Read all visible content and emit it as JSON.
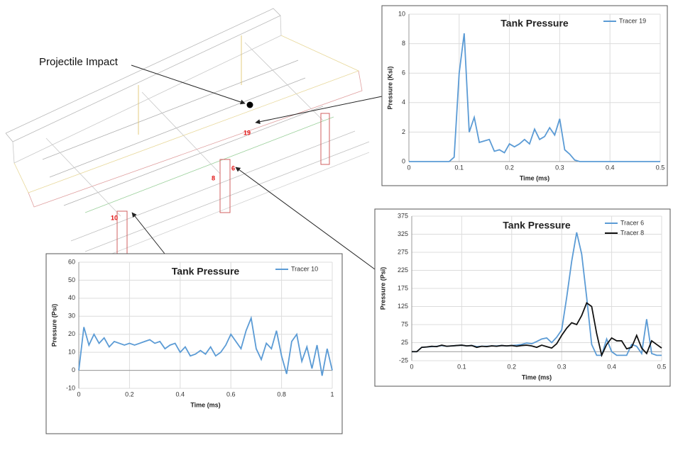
{
  "diagram": {
    "annotation": "Projectile Impact",
    "tracer_labels": [
      "19",
      "10",
      "8",
      "6"
    ]
  },
  "chart_data": [
    {
      "type": "line",
      "title": "Tank Pressure",
      "x_label": "Time (ms)",
      "y_label": "Pressure (Ksi)",
      "x": [
        0,
        0.08,
        0.09,
        0.1,
        0.11,
        0.12,
        0.13,
        0.14,
        0.15,
        0.16,
        0.17,
        0.18,
        0.19,
        0.2,
        0.21,
        0.22,
        0.23,
        0.24,
        0.25,
        0.26,
        0.27,
        0.28,
        0.29,
        0.3,
        0.31,
        0.32,
        0.33,
        0.34,
        0.5
      ],
      "series": [
        {
          "name": "Tracer 19",
          "color": "#5b9bd5",
          "values": [
            0,
            0,
            0.3,
            6,
            8.7,
            2.0,
            3.0,
            1.3,
            1.4,
            1.5,
            0.7,
            0.8,
            0.6,
            1.2,
            1.0,
            1.2,
            1.5,
            1.2,
            2.2,
            1.5,
            1.7,
            2.3,
            1.8,
            2.9,
            0.8,
            0.5,
            0.1,
            0,
            0
          ]
        }
      ],
      "xlim": [
        0,
        0.5
      ],
      "xticks": [
        0,
        0.1,
        0.2,
        0.3,
        0.4,
        0.5
      ],
      "ylim": [
        0,
        10
      ],
      "yticks": [
        0,
        2,
        4,
        6,
        8,
        10
      ],
      "grid": true,
      "legend": "upper right"
    },
    {
      "type": "line",
      "title": "Tank Pressure",
      "x_label": "Time (ms)",
      "y_label": "Pressure (Psi)",
      "x": [
        0,
        0.01,
        0.02,
        0.03,
        0.04,
        0.05,
        0.06,
        0.07,
        0.08,
        0.09,
        0.1,
        0.11,
        0.12,
        0.13,
        0.14,
        0.15,
        0.16,
        0.17,
        0.18,
        0.19,
        0.2,
        0.21,
        0.22,
        0.23,
        0.24,
        0.25,
        0.26,
        0.27,
        0.28,
        0.29,
        0.3,
        0.31,
        0.32,
        0.33,
        0.34,
        0.35,
        0.36,
        0.37,
        0.38,
        0.39,
        0.4,
        0.41,
        0.42,
        0.43,
        0.44,
        0.45,
        0.46,
        0.47,
        0.48,
        0.49,
        0.5
      ],
      "series": [
        {
          "name": "Tracer 6",
          "color": "#5b9bd5",
          "values": [
            0,
            0,
            12,
            13,
            14,
            15,
            17,
            15,
            16,
            17,
            18,
            16,
            17,
            14,
            15,
            15,
            16,
            16,
            17,
            16,
            17,
            18,
            20,
            24,
            22,
            28,
            35,
            38,
            25,
            40,
            60,
            150,
            250,
            330,
            270,
            150,
            20,
            -10,
            -10,
            35,
            0,
            -10,
            -10,
            -10,
            20,
            15,
            -5,
            90,
            -5,
            -10,
            -10
          ]
        },
        {
          "name": "Tracer 8",
          "color": "#111111",
          "values": [
            0,
            0,
            12,
            13,
            15,
            14,
            18,
            15,
            16,
            17,
            18,
            16,
            17,
            12,
            15,
            14,
            16,
            15,
            17,
            16,
            17,
            15,
            17,
            18,
            16,
            12,
            18,
            14,
            10,
            22,
            45,
            65,
            80,
            75,
            100,
            135,
            125,
            50,
            -10,
            20,
            38,
            30,
            30,
            8,
            12,
            45,
            10,
            -5,
            30,
            20,
            10
          ]
        }
      ],
      "xlim": [
        0,
        0.5
      ],
      "xticks": [
        0,
        0.1,
        0.2,
        0.3,
        0.4,
        0.5
      ],
      "ylim": [
        -25,
        375
      ],
      "yticks": [
        -25,
        25,
        75,
        125,
        175,
        225,
        275,
        325,
        375
      ],
      "grid": true,
      "legend": "upper right"
    },
    {
      "type": "line",
      "title": "Tank Pressure",
      "x_label": "Time (ms)",
      "y_label": "Pressure (Psi)",
      "x": [
        0,
        0.02,
        0.04,
        0.06,
        0.08,
        0.1,
        0.12,
        0.14,
        0.16,
        0.18,
        0.2,
        0.22,
        0.24,
        0.26,
        0.28,
        0.3,
        0.32,
        0.34,
        0.36,
        0.38,
        0.4,
        0.42,
        0.44,
        0.46,
        0.48,
        0.5,
        0.52,
        0.54,
        0.56,
        0.58,
        0.6,
        0.62,
        0.64,
        0.66,
        0.68,
        0.7,
        0.72,
        0.74,
        0.76,
        0.78,
        0.8,
        0.82,
        0.84,
        0.86,
        0.88,
        0.9,
        0.92,
        0.94,
        0.96,
        0.98,
        1
      ],
      "series": [
        {
          "name": "Tracer 10",
          "color": "#5b9bd5",
          "values": [
            0,
            24,
            14,
            20,
            15,
            18,
            13,
            16,
            15,
            14,
            15,
            14,
            15,
            16,
            17,
            15,
            16,
            12,
            14,
            15,
            10,
            13,
            8,
            9,
            11,
            9,
            13,
            8,
            10,
            14,
            20,
            16,
            12,
            22,
            29,
            12,
            6,
            15,
            12,
            22,
            8,
            -2,
            16,
            20,
            5,
            13,
            1,
            14,
            -3,
            12,
            0
          ]
        }
      ],
      "xlim": [
        0,
        1
      ],
      "xticks": [
        0,
        0.2,
        0.4,
        0.6,
        0.8,
        1
      ],
      "ylim": [
        -10,
        60
      ],
      "yticks": [
        -10,
        0,
        10,
        20,
        30,
        40,
        50,
        60
      ],
      "grid": true,
      "legend": "upper right"
    }
  ]
}
